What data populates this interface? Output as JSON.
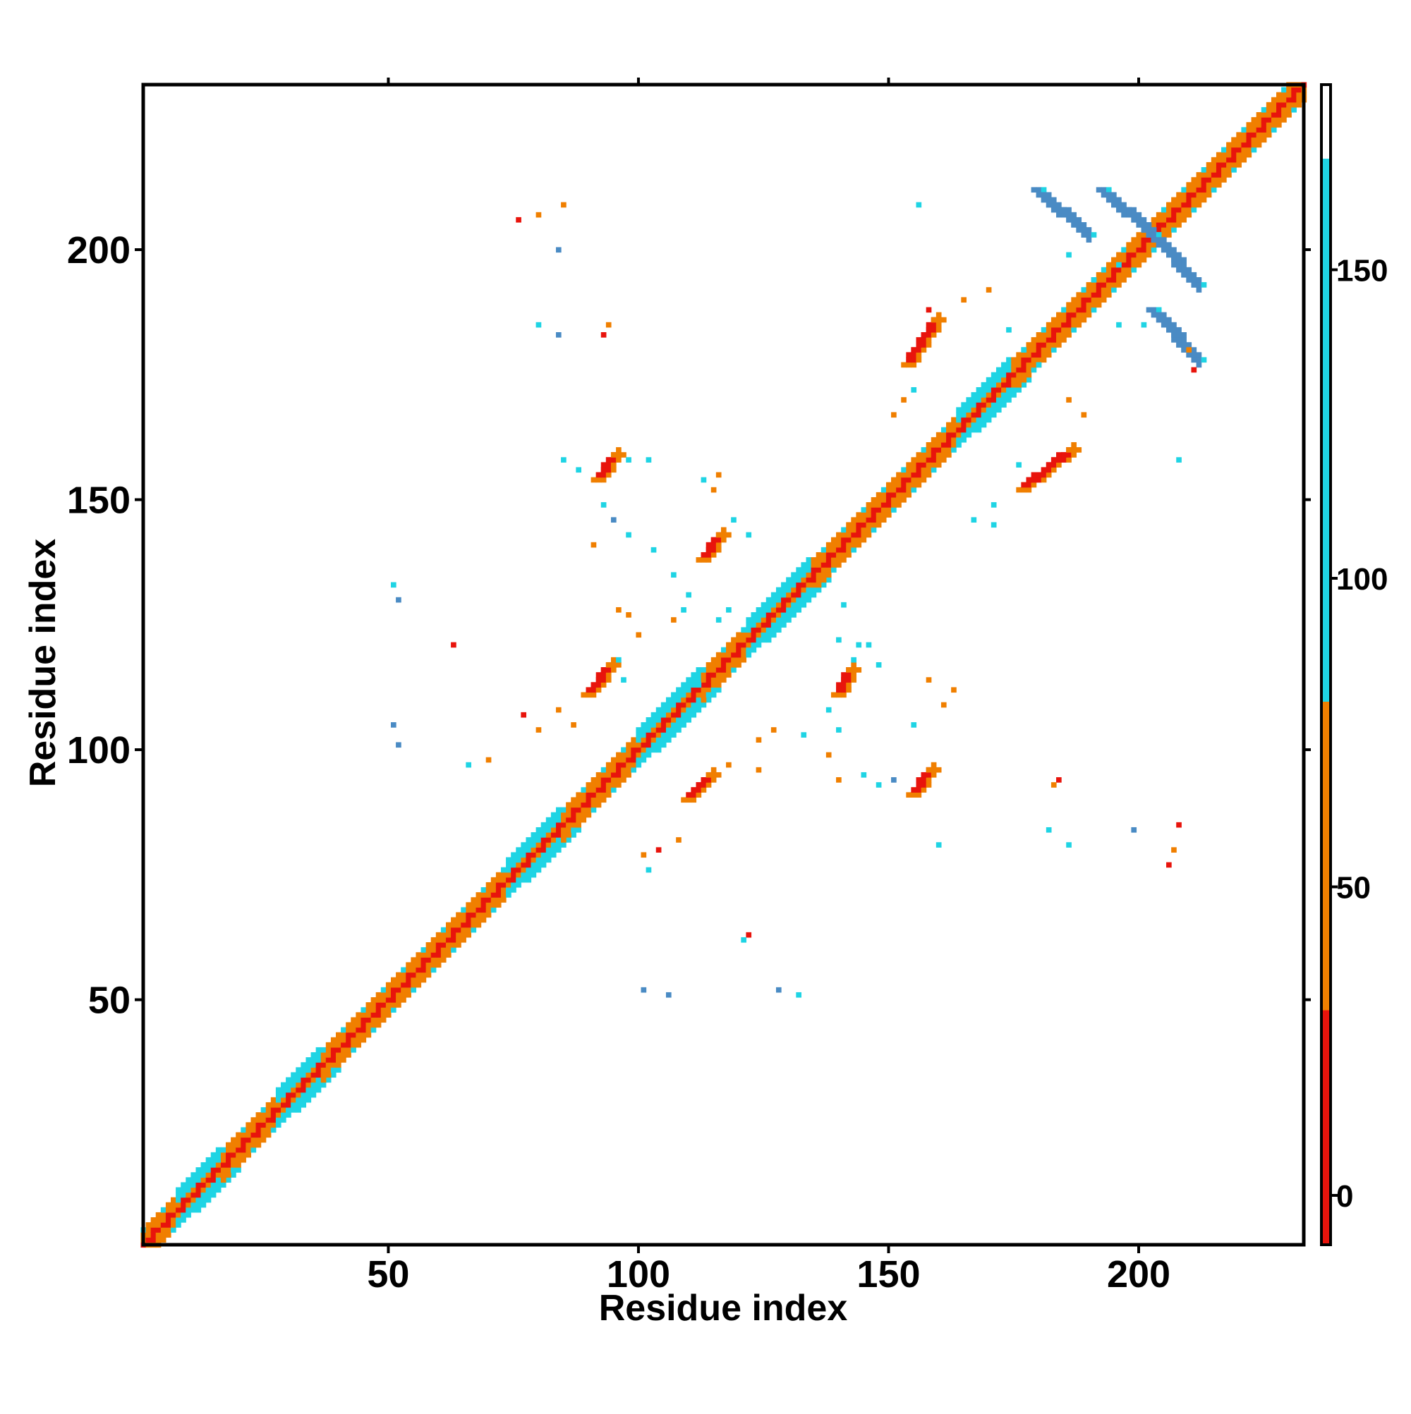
{
  "chart_data": {
    "type": "heatmap",
    "title": "",
    "xlabel": "Residue index",
    "ylabel": "Residue index",
    "xlim": [
      1,
      233
    ],
    "ylim": [
      1,
      233
    ],
    "x_ticks": [
      50,
      100,
      150,
      200
    ],
    "y_ticks": [
      50,
      100,
      150,
      200
    ],
    "x_tick_labels": [
      "50",
      "100",
      "150",
      "200"
    ],
    "y_tick_labels": [
      "50",
      "100",
      "150",
      "200"
    ],
    "colorbar": {
      "range": [
        -8,
        180
      ],
      "ticks": [
        0,
        50,
        100,
        150
      ],
      "tick_labels": [
        "0",
        "50",
        "100",
        "150"
      ],
      "segments": [
        {
          "from": -8,
          "to": 30,
          "color": "#e8140c"
        },
        {
          "from": 30,
          "to": 80,
          "color": "#f07f00"
        },
        {
          "from": 80,
          "to": 168,
          "color": "#1fd4e4"
        },
        {
          "from": 168,
          "to": 180,
          "color": "#ffffff"
        }
      ]
    },
    "colors": {
      "red": "#e8140c",
      "orange": "#f07f00",
      "cyan": "#1fd4e4",
      "steel": "#4a8bc4",
      "white": "#ffffff"
    },
    "diagonal": {
      "from": 1,
      "to": 233,
      "half_width": 3
    },
    "helix_segments": [
      [
        8,
        16
      ],
      [
        28,
        36
      ],
      [
        74,
        84
      ],
      [
        100,
        112
      ],
      [
        122,
        134
      ],
      [
        164,
        174
      ]
    ],
    "contact_clusters": [
      {
        "x": [
          92,
          96
        ],
        "y": [
          154,
          159
        ],
        "slope": 1,
        "color": "red"
      },
      {
        "x": [
          113,
          117
        ],
        "y": [
          138,
          143
        ],
        "slope": 1,
        "color": "red"
      },
      {
        "x": [
          90,
          95
        ],
        "y": [
          111,
          117
        ],
        "slope": 1,
        "color": "red"
      },
      {
        "x": [
          110,
          115
        ],
        "y": [
          90,
          95
        ],
        "slope": 1,
        "color": "red"
      },
      {
        "x": [
          140,
          143
        ],
        "y": [
          111,
          116
        ],
        "slope": 1,
        "color": "red"
      },
      {
        "x": [
          155,
          159
        ],
        "y": [
          91,
          96
        ],
        "slope": 1,
        "color": "red"
      },
      {
        "x": [
          154,
          160
        ],
        "y": [
          177,
          186
        ],
        "slope": 1,
        "color": "red"
      },
      {
        "x": [
          177,
          187
        ],
        "y": [
          152,
          160
        ],
        "slope": 1,
        "color": "red"
      },
      {
        "x": [
          180,
          190
        ],
        "y": [
          203,
          212
        ],
        "slope": -1,
        "color": "steel"
      },
      {
        "x": [
          193,
          203
        ],
        "y": [
          203,
          212
        ],
        "slope": -1,
        "color": "steel"
      },
      {
        "x": [
          203,
          212
        ],
        "y": [
          193,
          203
        ],
        "slope": -1,
        "color": "steel"
      },
      {
        "x": [
          203,
          212
        ],
        "y": [
          178,
          188
        ],
        "slope": -1,
        "color": "steel"
      }
    ],
    "scattered_contacts": [
      [
        76,
        206,
        "red"
      ],
      [
        80,
        207,
        "orange"
      ],
      [
        85,
        209,
        "orange"
      ],
      [
        84,
        200,
        "steel"
      ],
      [
        80,
        185,
        "cyan"
      ],
      [
        84,
        183,
        "steel"
      ],
      [
        93,
        183,
        "red"
      ],
      [
        94,
        185,
        "orange"
      ],
      [
        51,
        133,
        "cyan"
      ],
      [
        52,
        130,
        "steel"
      ],
      [
        63,
        121,
        "red"
      ],
      [
        51,
        105,
        "steel"
      ],
      [
        52,
        101,
        "steel"
      ],
      [
        77,
        107,
        "red"
      ],
      [
        80,
        104,
        "orange"
      ],
      [
        84,
        108,
        "orange"
      ],
      [
        87,
        105,
        "orange"
      ],
      [
        101,
        79,
        "orange"
      ],
      [
        104,
        80,
        "red"
      ],
      [
        102,
        76,
        "cyan"
      ],
      [
        108,
        82,
        "orange"
      ],
      [
        122,
        63,
        "red"
      ],
      [
        121,
        62,
        "cyan"
      ],
      [
        101,
        52,
        "steel"
      ],
      [
        106,
        51,
        "steel"
      ],
      [
        128,
        52,
        "steel"
      ],
      [
        132,
        51,
        "cyan"
      ],
      [
        148,
        117,
        "cyan"
      ],
      [
        155,
        105,
        "cyan"
      ],
      [
        158,
        114,
        "orange"
      ],
      [
        160,
        81,
        "cyan"
      ],
      [
        184,
        94,
        "red"
      ],
      [
        183,
        93,
        "orange"
      ],
      [
        182,
        84,
        "cyan"
      ],
      [
        186,
        81,
        "cyan"
      ],
      [
        199,
        84,
        "steel"
      ],
      [
        206,
        77,
        "red"
      ],
      [
        207,
        80,
        "orange"
      ],
      [
        208,
        85,
        "red"
      ],
      [
        156,
        209,
        "cyan"
      ],
      [
        158,
        188,
        "red"
      ],
      [
        165,
        190,
        "orange"
      ],
      [
        170,
        192,
        "orange"
      ],
      [
        174,
        184,
        "cyan"
      ],
      [
        177,
        180,
        "cyan"
      ],
      [
        180,
        177,
        "cyan"
      ],
      [
        186,
        170,
        "orange"
      ],
      [
        189,
        167,
        "orange"
      ],
      [
        176,
        157,
        "cyan"
      ],
      [
        171,
        149,
        "cyan"
      ],
      [
        208,
        158,
        "cyan"
      ],
      [
        211,
        176,
        "red"
      ],
      [
        210,
        180,
        "orange"
      ],
      [
        196,
        185,
        "cyan"
      ],
      [
        201,
        185,
        "cyan"
      ],
      [
        191,
        194,
        "cyan"
      ],
      [
        196,
        197,
        "cyan"
      ],
      [
        186,
        199,
        "cyan"
      ],
      [
        143,
        118,
        "cyan"
      ],
      [
        146,
        121,
        "cyan"
      ],
      [
        138,
        108,
        "cyan"
      ],
      [
        140,
        104,
        "cyan"
      ],
      [
        133,
        103,
        "cyan"
      ],
      [
        127,
        104,
        "orange"
      ],
      [
        124,
        102,
        "orange"
      ],
      [
        138,
        99,
        "orange"
      ],
      [
        140,
        94,
        "orange"
      ],
      [
        145,
        95,
        "cyan"
      ],
      [
        148,
        93,
        "cyan"
      ],
      [
        151,
        94,
        "steel"
      ],
      [
        118,
        128,
        "cyan"
      ],
      [
        116,
        126,
        "cyan"
      ],
      [
        109,
        128,
        "cyan"
      ],
      [
        107,
        126,
        "orange"
      ],
      [
        100,
        123,
        "orange"
      ],
      [
        98,
        127,
        "orange"
      ],
      [
        96,
        118,
        "cyan"
      ],
      [
        97,
        114,
        "cyan"
      ],
      [
        107,
        135,
        "cyan"
      ],
      [
        110,
        131,
        "cyan"
      ],
      [
        119,
        146,
        "cyan"
      ],
      [
        122,
        143,
        "cyan"
      ],
      [
        115,
        152,
        "orange"
      ],
      [
        116,
        155,
        "orange"
      ],
      [
        113,
        154,
        "cyan"
      ],
      [
        98,
        158,
        "cyan"
      ],
      [
        102,
        158,
        "cyan"
      ],
      [
        85,
        158,
        "cyan"
      ],
      [
        88,
        156,
        "cyan"
      ],
      [
        93,
        149,
        "cyan"
      ],
      [
        95,
        146,
        "steel"
      ],
      [
        98,
        143,
        "cyan"
      ],
      [
        91,
        141,
        "orange"
      ],
      [
        103,
        140,
        "cyan"
      ],
      [
        112,
        113,
        "cyan"
      ],
      [
        114,
        111,
        "cyan"
      ],
      [
        96,
        128,
        "orange"
      ],
      [
        66,
        97,
        "cyan"
      ],
      [
        70,
        98,
        "orange"
      ],
      [
        118,
        97,
        "orange"
      ],
      [
        124,
        96,
        "orange"
      ],
      [
        140,
        122,
        "cyan"
      ],
      [
        144,
        121,
        "cyan"
      ],
      [
        141,
        129,
        "cyan"
      ],
      [
        161,
        109,
        "orange"
      ],
      [
        163,
        112,
        "orange"
      ],
      [
        151,
        167,
        "orange"
      ],
      [
        153,
        170,
        "orange"
      ],
      [
        155,
        172,
        "cyan"
      ],
      [
        171,
        145,
        "cyan"
      ],
      [
        167,
        146,
        "cyan"
      ]
    ]
  }
}
